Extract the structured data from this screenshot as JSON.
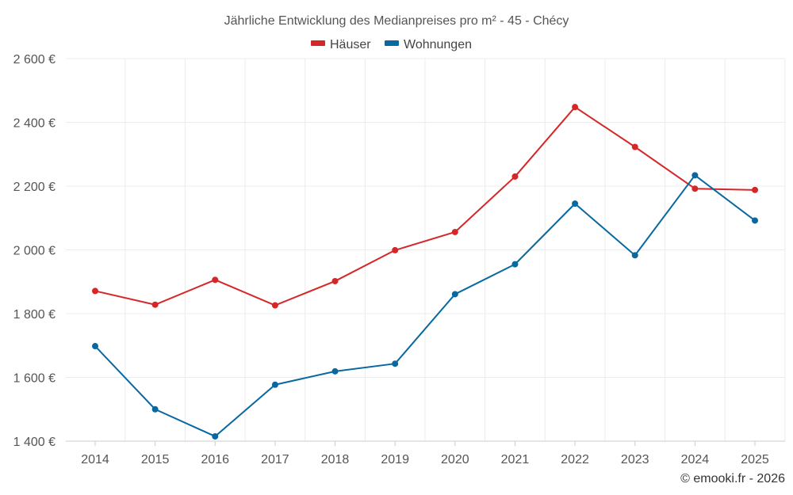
{
  "chart_data": {
    "type": "line",
    "title": "Jährliche Entwicklung des Medianpreises pro m² - 45 - Chécy",
    "x": [
      2014,
      2015,
      2016,
      2017,
      2018,
      2019,
      2020,
      2021,
      2022,
      2023,
      2024,
      2025
    ],
    "x_tick_labels": [
      "2014",
      "2015",
      "2016",
      "2017",
      "2018",
      "2019",
      "2020",
      "2021",
      "2022",
      "2023",
      "2024",
      "2025"
    ],
    "y_ticks": [
      1400,
      1600,
      1800,
      2000,
      2200,
      2400,
      2600
    ],
    "y_tick_labels": [
      "1 400 €",
      "1 600 €",
      "1 800 €",
      "2 000 €",
      "2 200 €",
      "2 400 €",
      "2 600 €"
    ],
    "ylim": [
      1400,
      2600
    ],
    "grid": true,
    "legend_position": "top-center",
    "series": [
      {
        "name": "Häuser",
        "color": "#d62728",
        "values": [
          1871,
          1828,
          1906,
          1826,
          1902,
          1999,
          2056,
          2230,
          2448,
          2323,
          2192,
          2188
        ]
      },
      {
        "name": "Wohnungen",
        "color": "#0868a0",
        "values": [
          1698,
          1500,
          1415,
          1577,
          1619,
          1643,
          1861,
          1955,
          2145,
          1983,
          2234,
          2092
        ]
      }
    ],
    "credit": "© emooki.fr - 2026"
  }
}
